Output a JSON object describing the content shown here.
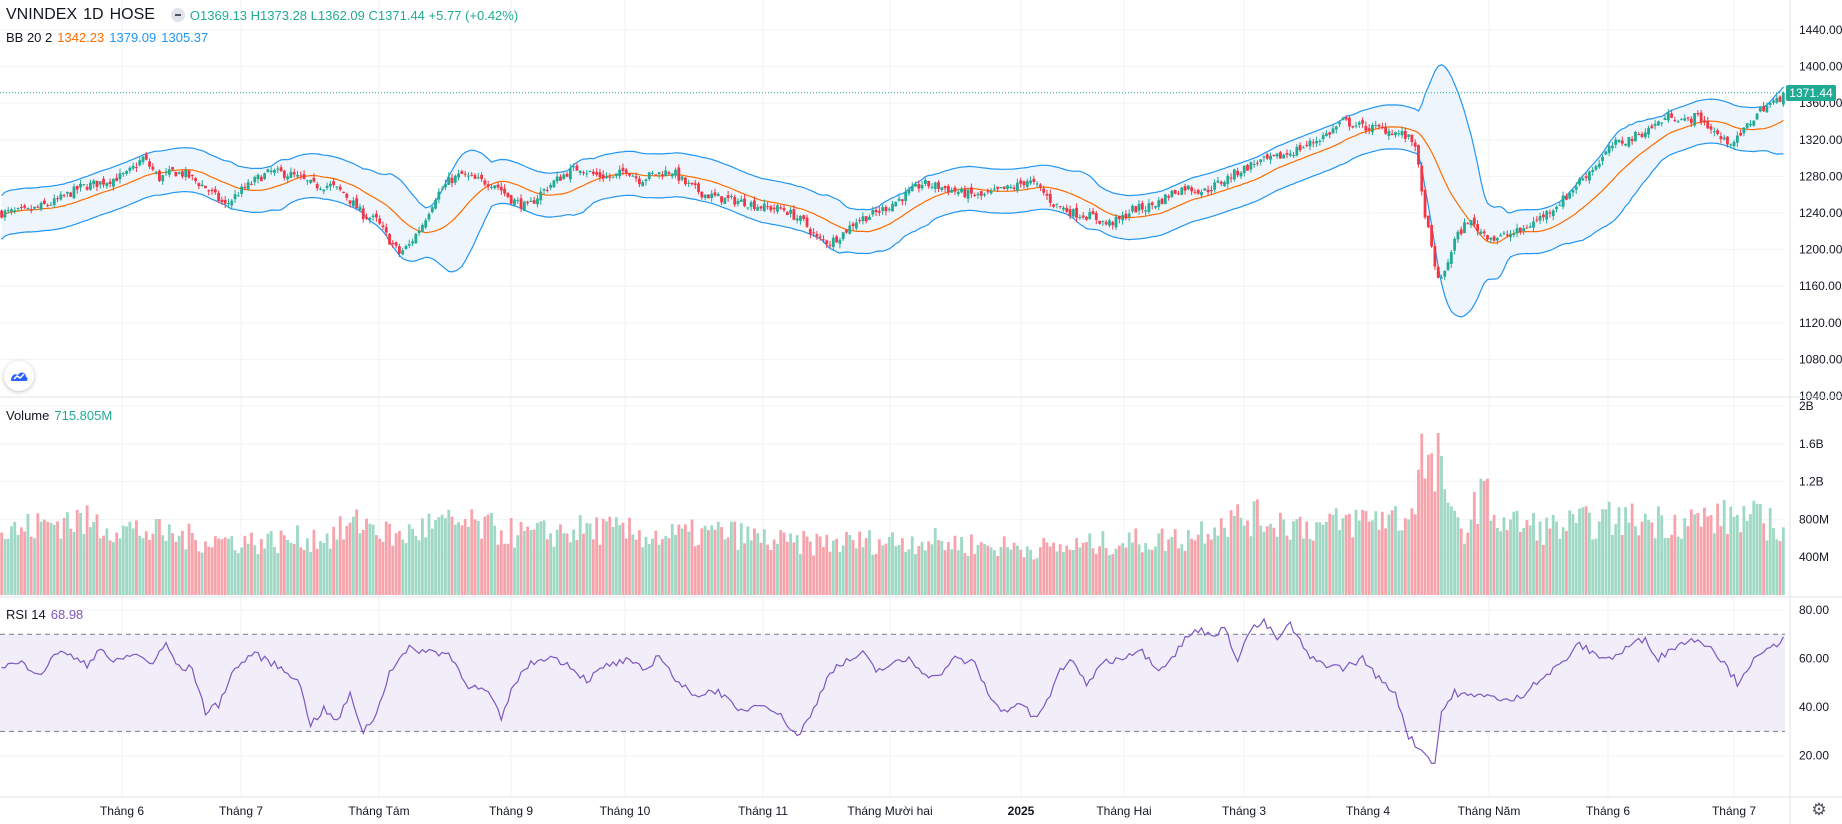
{
  "header": {
    "symbol": "VNINDEX",
    "interval": "1D",
    "exchange": "HOSE",
    "open": "O1369.13",
    "high": "H1373.28",
    "low": "L1362.09",
    "close": "C1371.44",
    "change": "+5.77 (+0.42%)"
  },
  "indicators": {
    "bb": {
      "label": "BB 20 2",
      "basis": "1342.23",
      "upper": "1379.09",
      "lower": "1305.37"
    },
    "volume": {
      "label": "Volume",
      "value": "715.805M"
    },
    "rsi": {
      "label": "RSI 14",
      "value": "68.98"
    }
  },
  "last_price_label": "1371.44",
  "colors": {
    "up": "#22ab94",
    "down": "#f23645",
    "up_volume": "#9fd8c4",
    "down_volume": "#f6a3ab",
    "bb_band": "#2196f3",
    "bb_basis": "#ff6d00",
    "bb_fill": "#eef5fd",
    "rsi_line": "#7e57c2",
    "rsi_fill": "#f1eefa",
    "grid": "#f0f3fa",
    "axis_text": "#131722"
  },
  "icons": {
    "logo": "tradingview-logo-icon",
    "settings": "gear-icon"
  },
  "chart_data": [
    {
      "type": "candlestick",
      "name": "VNINDEX",
      "ylim": [
        1040,
        1440
      ],
      "yticks": [
        "1440.00",
        "1400.00",
        "1360.00",
        "1320.00",
        "1280.00",
        "1240.00",
        "1200.00",
        "1160.00",
        "1120.00",
        "1080.00",
        "1040.00"
      ],
      "x_tick_labels": [
        "Tháng 6",
        "Tháng 7",
        "Tháng Tám",
        "Tháng 9",
        "Tháng 10",
        "Tháng 11",
        "Tháng Mười hai",
        "2025",
        "Tháng Hai",
        "Tháng 3",
        "Tháng 4",
        "Tháng Năm",
        "Tháng 6",
        "Tháng 7"
      ],
      "close_path": [
        [
          0,
          1240
        ],
        [
          8,
          1242
        ],
        [
          16,
          1252
        ],
        [
          24,
          1268
        ],
        [
          32,
          1275
        ],
        [
          38,
          1282
        ],
        [
          43,
          1300
        ],
        [
          48,
          1278
        ],
        [
          52,
          1285
        ],
        [
          56,
          1282
        ],
        [
          62,
          1268
        ],
        [
          68,
          1248
        ],
        [
          72,
          1262
        ],
        [
          78,
          1278
        ],
        [
          82,
          1285
        ],
        [
          88,
          1282
        ],
        [
          95,
          1270
        ],
        [
          100,
          1270
        ],
        [
          104,
          1262
        ],
        [
          110,
          1238
        ],
        [
          114,
          1232
        ],
        [
          118,
          1210
        ],
        [
          121,
          1196
        ],
        [
          124,
          1205
        ],
        [
          128,
          1228
        ],
        [
          132,
          1258
        ],
        [
          136,
          1275
        ],
        [
          140,
          1282
        ],
        [
          144,
          1276
        ],
        [
          150,
          1272
        ],
        [
          155,
          1255
        ],
        [
          160,
          1246
        ],
        [
          164,
          1262
        ],
        [
          168,
          1274
        ],
        [
          172,
          1284
        ],
        [
          176,
          1290
        ],
        [
          180,
          1282
        ],
        [
          186,
          1278
        ],
        [
          190,
          1288
        ],
        [
          194,
          1276
        ],
        [
          198,
          1282
        ],
        [
          204,
          1286
        ],
        [
          208,
          1272
        ],
        [
          214,
          1260
        ],
        [
          220,
          1255
        ],
        [
          226,
          1252
        ],
        [
          232,
          1246
        ],
        [
          238,
          1244
        ],
        [
          244,
          1230
        ],
        [
          248,
          1212
        ],
        [
          252,
          1208
        ],
        [
          256,
          1218
        ],
        [
          260,
          1232
        ],
        [
          266,
          1240
        ],
        [
          270,
          1248
        ],
        [
          276,
          1262
        ],
        [
          280,
          1272
        ],
        [
          286,
          1268
        ],
        [
          292,
          1262
        ],
        [
          298,
          1258
        ],
        [
          304,
          1265
        ],
        [
          308,
          1268
        ],
        [
          312,
          1276
        ],
        [
          316,
          1266
        ],
        [
          320,
          1250
        ],
        [
          326,
          1240
        ],
        [
          332,
          1236
        ],
        [
          336,
          1228
        ],
        [
          340,
          1232
        ],
        [
          344,
          1244
        ],
        [
          348,
          1246
        ],
        [
          352,
          1252
        ],
        [
          356,
          1262
        ],
        [
          360,
          1268
        ],
        [
          366,
          1264
        ],
        [
          372,
          1276
        ],
        [
          376,
          1285
        ],
        [
          382,
          1296
        ],
        [
          386,
          1298
        ],
        [
          392,
          1306
        ],
        [
          398,
          1316
        ],
        [
          404,
          1328
        ],
        [
          408,
          1340
        ],
        [
          414,
          1334
        ],
        [
          420,
          1332
        ],
        [
          426,
          1326
        ],
        [
          430,
          1316
        ],
        [
          432,
          1260
        ],
        [
          434,
          1220
        ],
        [
          436,
          1180
        ],
        [
          438,
          1165
        ],
        [
          440,
          1188
        ],
        [
          442,
          1210
        ],
        [
          446,
          1232
        ],
        [
          450,
          1220
        ],
        [
          454,
          1212
        ],
        [
          458,
          1216
        ],
        [
          462,
          1220
        ],
        [
          466,
          1230
        ],
        [
          470,
          1240
        ],
        [
          476,
          1258
        ],
        [
          480,
          1275
        ],
        [
          486,
          1296
        ],
        [
          490,
          1314
        ],
        [
          496,
          1322
        ],
        [
          502,
          1334
        ],
        [
          508,
          1348
        ],
        [
          512,
          1340
        ],
        [
          516,
          1346
        ],
        [
          520,
          1332
        ],
        [
          524,
          1318
        ],
        [
          528,
          1320
        ],
        [
          532,
          1340
        ],
        [
          536,
          1356
        ],
        [
          540,
          1362
        ],
        [
          542,
          1370
        ]
      ],
      "basis": {
        "color": "#ff6d00",
        "value": 1342.23
      },
      "upper_band": {
        "color": "#2196f3",
        "value": 1379.09
      },
      "lower_band": {
        "color": "#2196f3",
        "value": 1305.37
      },
      "last": 1371.44
    },
    {
      "type": "bar",
      "name": "Volume",
      "ylim": [
        0,
        2000
      ],
      "unit": "M",
      "yticks": [
        "2B",
        "1.6B",
        "1.2B",
        "800M",
        "400M"
      ],
      "value_path": [
        [
          0,
          650
        ],
        [
          20,
          800
        ],
        [
          40,
          690
        ],
        [
          60,
          590
        ],
        [
          80,
          560
        ],
        [
          100,
          620
        ],
        [
          110,
          780
        ],
        [
          120,
          600
        ],
        [
          130,
          730
        ],
        [
          140,
          750
        ],
        [
          160,
          630
        ],
        [
          180,
          700
        ],
        [
          200,
          620
        ],
        [
          220,
          660
        ],
        [
          240,
          540
        ],
        [
          260,
          560
        ],
        [
          280,
          580
        ],
        [
          300,
          520
        ],
        [
          320,
          490
        ],
        [
          340,
          560
        ],
        [
          360,
          600
        ],
        [
          370,
          780
        ],
        [
          380,
          820
        ],
        [
          400,
          720
        ],
        [
          420,
          830
        ],
        [
          428,
          800
        ],
        [
          430,
          1100
        ],
        [
          432,
          1500
        ],
        [
          434,
          1350
        ],
        [
          436,
          1200
        ],
        [
          438,
          1600
        ],
        [
          440,
          800
        ],
        [
          446,
          700
        ],
        [
          450,
          1100
        ],
        [
          456,
          780
        ],
        [
          470,
          700
        ],
        [
          490,
          800
        ],
        [
          510,
          780
        ],
        [
          530,
          830
        ],
        [
          542,
          720
        ]
      ]
    },
    {
      "type": "line",
      "name": "RSI",
      "ylim": [
        10,
        80
      ],
      "yticks": [
        "80.00",
        "60.00",
        "40.00",
        "20.00"
      ],
      "bands": [
        70,
        30
      ],
      "points": [
        [
          0,
          57
        ],
        [
          6,
          58
        ],
        [
          12,
          54
        ],
        [
          18,
          64
        ],
        [
          22,
          60
        ],
        [
          26,
          57
        ],
        [
          30,
          65
        ],
        [
          34,
          58
        ],
        [
          40,
          62
        ],
        [
          46,
          58
        ],
        [
          50,
          66
        ],
        [
          54,
          56
        ],
        [
          58,
          56
        ],
        [
          62,
          38
        ],
        [
          66,
          41
        ],
        [
          70,
          54
        ],
        [
          76,
          62
        ],
        [
          80,
          60
        ],
        [
          86,
          55
        ],
        [
          90,
          52
        ],
        [
          94,
          33
        ],
        [
          98,
          39
        ],
        [
          102,
          34
        ],
        [
          106,
          45
        ],
        [
          110,
          30
        ],
        [
          114,
          37
        ],
        [
          118,
          55
        ],
        [
          124,
          64
        ],
        [
          130,
          63
        ],
        [
          136,
          62
        ],
        [
          142,
          49
        ],
        [
          148,
          46
        ],
        [
          152,
          35
        ],
        [
          156,
          50
        ],
        [
          160,
          57
        ],
        [
          166,
          61
        ],
        [
          172,
          58
        ],
        [
          178,
          51
        ],
        [
          184,
          57
        ],
        [
          190,
          59
        ],
        [
          196,
          55
        ],
        [
          200,
          62
        ],
        [
          206,
          49
        ],
        [
          212,
          45
        ],
        [
          218,
          47
        ],
        [
          224,
          38
        ],
        [
          232,
          42
        ],
        [
          238,
          35
        ],
        [
          242,
          28
        ],
        [
          246,
          36
        ],
        [
          252,
          55
        ],
        [
          256,
          58
        ],
        [
          262,
          62
        ],
        [
          266,
          55
        ],
        [
          270,
          57
        ],
        [
          276,
          60
        ],
        [
          280,
          55
        ],
        [
          284,
          52
        ],
        [
          290,
          60
        ],
        [
          296,
          58
        ],
        [
          300,
          46
        ],
        [
          304,
          38
        ],
        [
          310,
          42
        ],
        [
          314,
          35
        ],
        [
          318,
          42
        ],
        [
          322,
          55
        ],
        [
          326,
          60
        ],
        [
          330,
          48
        ],
        [
          334,
          58
        ],
        [
          340,
          60
        ],
        [
          346,
          64
        ],
        [
          352,
          56
        ],
        [
          356,
          60
        ],
        [
          360,
          68
        ],
        [
          364,
          72
        ],
        [
          368,
          70
        ],
        [
          372,
          72
        ],
        [
          376,
          60
        ],
        [
          380,
          72
        ],
        [
          384,
          75
        ],
        [
          388,
          68
        ],
        [
          392,
          74
        ],
        [
          398,
          60
        ],
        [
          402,
          58
        ],
        [
          408,
          56
        ],
        [
          414,
          60
        ],
        [
          420,
          50
        ],
        [
          424,
          46
        ],
        [
          428,
          28
        ],
        [
          432,
          22
        ],
        [
          436,
          17
        ],
        [
          438,
          38
        ],
        [
          442,
          46
        ],
        [
          448,
          44
        ],
        [
          452,
          46
        ],
        [
          456,
          42
        ],
        [
          462,
          44
        ],
        [
          466,
          50
        ],
        [
          470,
          53
        ],
        [
          476,
          60
        ],
        [
          480,
          66
        ],
        [
          484,
          62
        ],
        [
          490,
          60
        ],
        [
          496,
          66
        ],
        [
          500,
          68
        ],
        [
          504,
          60
        ],
        [
          510,
          66
        ],
        [
          516,
          68
        ],
        [
          520,
          65
        ],
        [
          524,
          58
        ],
        [
          528,
          50
        ],
        [
          532,
          58
        ],
        [
          536,
          62
        ],
        [
          540,
          66
        ],
        [
          542,
          69
        ]
      ]
    }
  ]
}
